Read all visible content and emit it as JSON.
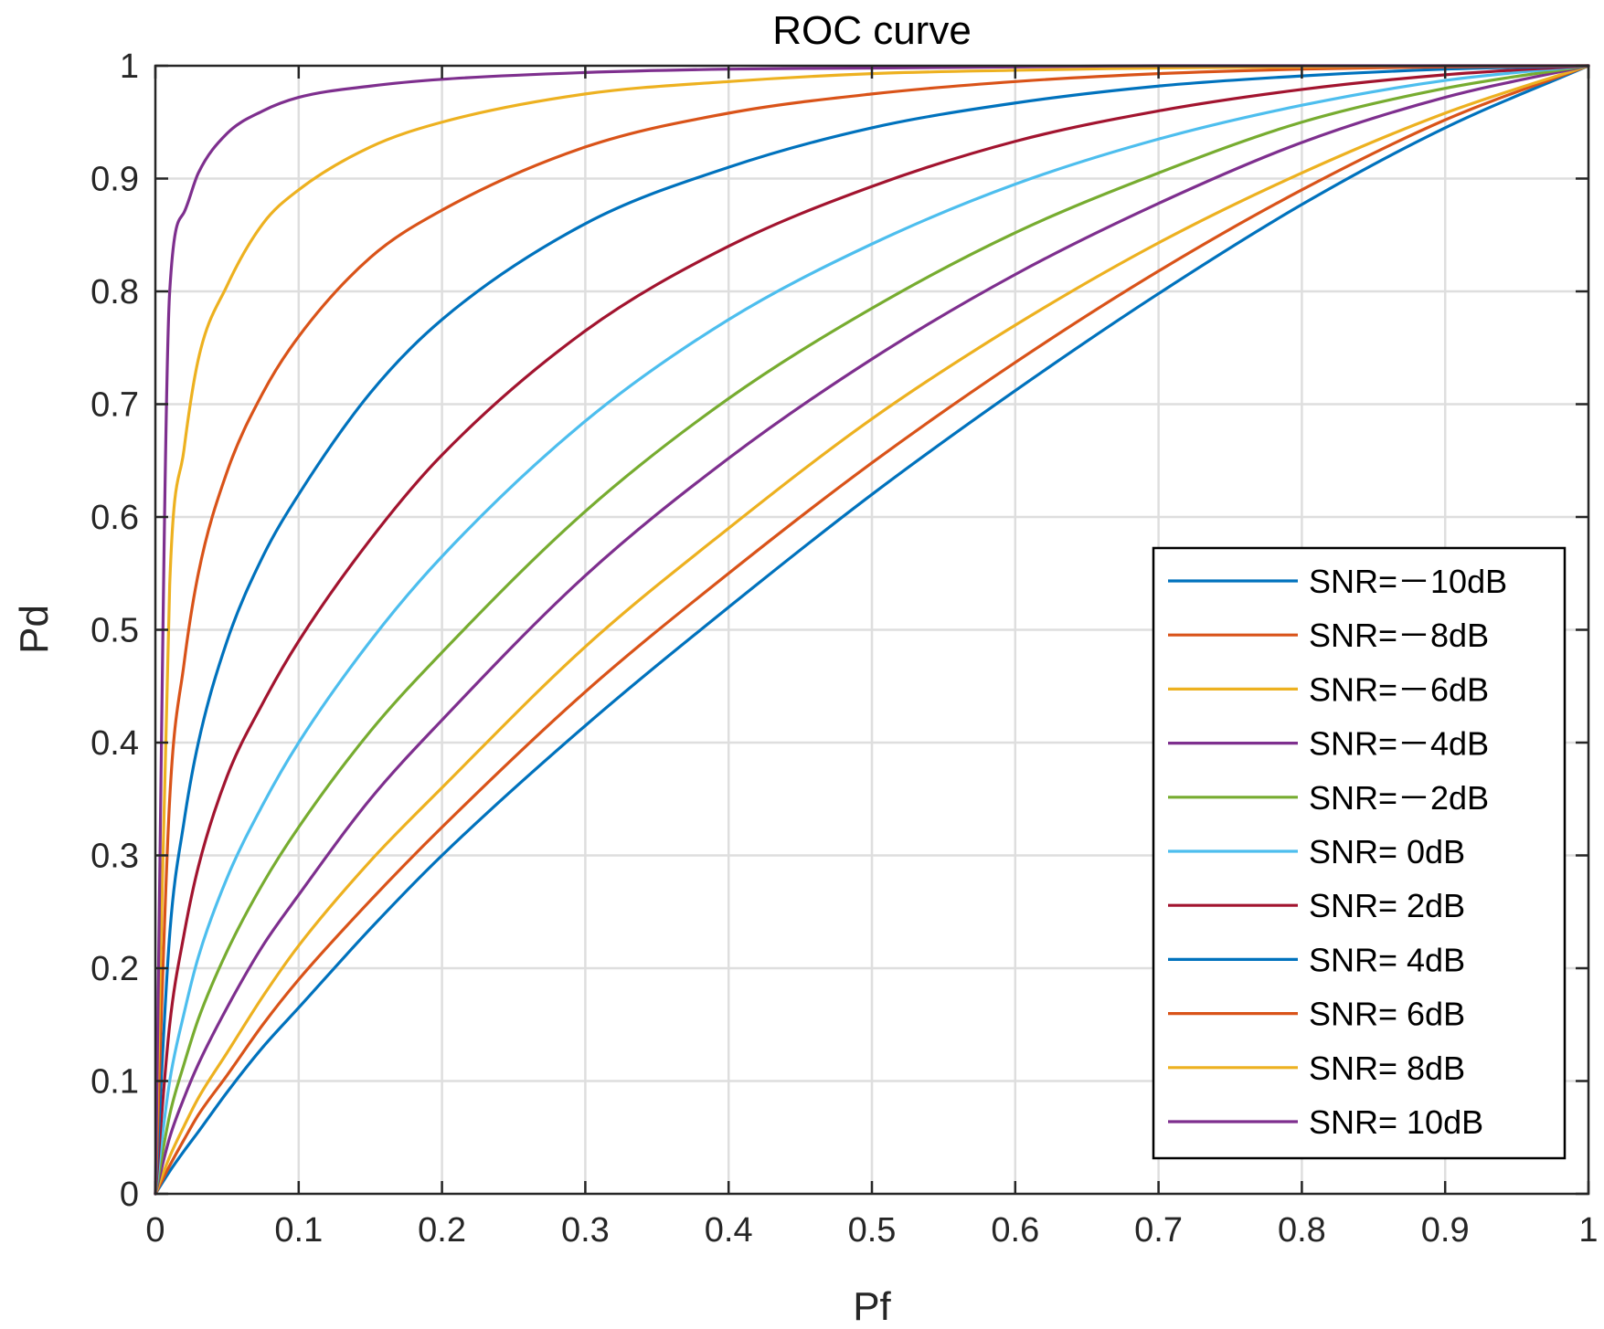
{
  "chart_data": {
    "type": "line",
    "title": "ROC curve",
    "xlabel": "Pf",
    "ylabel": "Pd",
    "xlim": [
      0,
      1
    ],
    "ylim": [
      0,
      1
    ],
    "grid": true,
    "legend_position": "bottom-right",
    "xticks": [
      0,
      0.1,
      0.2,
      0.3,
      0.4,
      0.5,
      0.6,
      0.7,
      0.8,
      0.9,
      1
    ],
    "xtick_labels": [
      "0",
      "0.1",
      "0.2",
      "0.3",
      "0.4",
      "0.5",
      "0.6",
      "0.7",
      "0.8",
      "0.9",
      "1"
    ],
    "yticks": [
      0,
      0.1,
      0.2,
      0.3,
      0.4,
      0.5,
      0.6,
      0.7,
      0.8,
      0.9,
      1
    ],
    "ytick_labels": [
      "0",
      "0.1",
      "0.2",
      "0.3",
      "0.4",
      "0.5",
      "0.6",
      "0.7",
      "0.8",
      "0.9",
      "1"
    ],
    "x": [
      0,
      0.01,
      0.02,
      0.03,
      0.05,
      0.075,
      0.1,
      0.15,
      0.2,
      0.3,
      0.4,
      0.5,
      0.6,
      0.7,
      0.8,
      0.9,
      1
    ],
    "series": [
      {
        "name": "SNR=－10dB",
        "color": "#0072BD",
        "values": [
          0,
          0.02,
          0.038,
          0.055,
          0.09,
          0.13,
          0.165,
          0.235,
          0.3,
          0.415,
          0.52,
          0.62,
          0.712,
          0.798,
          0.877,
          0.945,
          1
        ]
      },
      {
        "name": "SNR=－8dB",
        "color": "#D95319",
        "values": [
          0,
          0.025,
          0.048,
          0.07,
          0.105,
          0.15,
          0.19,
          0.26,
          0.325,
          0.445,
          0.55,
          0.648,
          0.737,
          0.818,
          0.89,
          0.952,
          1
        ]
      },
      {
        "name": "SNR=－6dB",
        "color": "#EDB120",
        "values": [
          0,
          0.033,
          0.06,
          0.085,
          0.125,
          0.175,
          0.22,
          0.295,
          0.36,
          0.485,
          0.59,
          0.687,
          0.77,
          0.843,
          0.905,
          0.958,
          1
        ]
      },
      {
        "name": "SNR=－4dB",
        "color": "#7E2F8E",
        "values": [
          0,
          0.05,
          0.085,
          0.115,
          0.165,
          0.22,
          0.265,
          0.35,
          0.42,
          0.548,
          0.652,
          0.74,
          0.815,
          0.878,
          0.932,
          0.972,
          1
        ]
      },
      {
        "name": "SNR=－2dB",
        "color": "#77AC30",
        "values": [
          0,
          0.07,
          0.115,
          0.155,
          0.215,
          0.275,
          0.325,
          0.41,
          0.48,
          0.605,
          0.705,
          0.785,
          0.852,
          0.905,
          0.95,
          0.98,
          1
        ]
      },
      {
        "name": "SNR=  0dB",
        "color": "#4DBEEE",
        "values": [
          0,
          0.1,
          0.16,
          0.21,
          0.28,
          0.345,
          0.4,
          0.49,
          0.565,
          0.685,
          0.775,
          0.842,
          0.895,
          0.935,
          0.965,
          0.987,
          1
        ]
      },
      {
        "name": "SNR=  2dB",
        "color": "#A2142F",
        "values": [
          0,
          0.15,
          0.23,
          0.29,
          0.37,
          0.435,
          0.49,
          0.58,
          0.655,
          0.765,
          0.84,
          0.893,
          0.933,
          0.96,
          0.979,
          0.992,
          1
        ]
      },
      {
        "name": "SNR=  4dB",
        "color": "#0072BD",
        "values": [
          0,
          0.23,
          0.33,
          0.4,
          0.49,
          0.565,
          0.62,
          0.71,
          0.775,
          0.86,
          0.91,
          0.945,
          0.967,
          0.982,
          0.991,
          0.997,
          1
        ]
      },
      {
        "name": "SNR=  6dB",
        "color": "#D95319",
        "values": [
          0,
          0.35,
          0.47,
          0.55,
          0.64,
          0.71,
          0.76,
          0.83,
          0.872,
          0.928,
          0.958,
          0.975,
          0.986,
          0.993,
          0.997,
          0.999,
          1
        ]
      },
      {
        "name": "SNR=  8dB",
        "color": "#EDB120",
        "values": [
          0,
          0.54,
          0.66,
          0.74,
          0.805,
          0.86,
          0.89,
          0.928,
          0.95,
          0.975,
          0.986,
          0.993,
          0.996,
          0.998,
          0.999,
          1,
          1
        ]
      },
      {
        "name": "SNR=  10dB",
        "color": "#7E2F8E",
        "values": [
          0,
          0.8,
          0.87,
          0.905,
          0.94,
          0.96,
          0.972,
          0.982,
          0.988,
          0.994,
          0.997,
          0.998,
          0.999,
          1,
          1,
          1,
          1
        ]
      }
    ]
  }
}
